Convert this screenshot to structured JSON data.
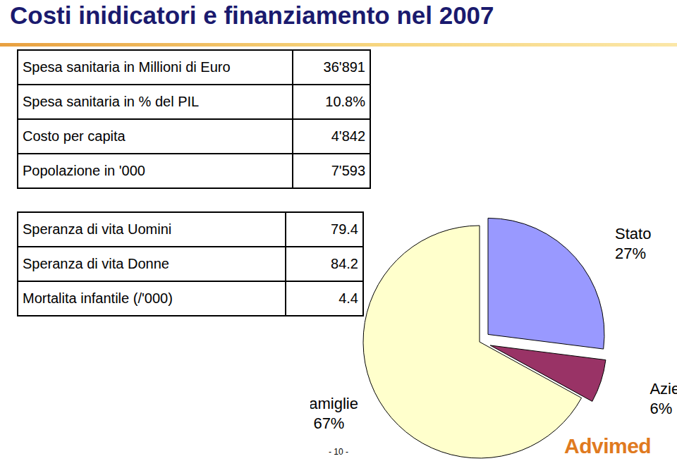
{
  "title": "Costi inidicatori e finanziamento nel 2007",
  "table1": [
    {
      "label": "Spesa sanitaria in Millioni di Euro",
      "value": "36'891"
    },
    {
      "label": "Spesa sanitaria in % del PIL",
      "value": "10.8%"
    },
    {
      "label": "Costo per capita",
      "value": "4'842"
    },
    {
      "label": "Popolazione in '000",
      "value": "7'593"
    }
  ],
  "table2": [
    {
      "label": "Speranza di vita Uomini",
      "value": "79.4"
    },
    {
      "label": "Speranza di vita Donne",
      "value": "84.2"
    },
    {
      "label": "Mortalita infantile (/'000)",
      "value": "4.4"
    }
  ],
  "chart_data": {
    "type": "pie",
    "categories": [
      "Stato",
      "Aziende",
      "Famiglie"
    ],
    "values": [
      27,
      6,
      67
    ],
    "value_labels": [
      "27%",
      "6%",
      "67%"
    ],
    "colors": [
      "#9999ff",
      "#993366",
      "#ffffcc"
    ],
    "data_labels": true
  },
  "page": "- 10 -",
  "logo": "Advimed"
}
